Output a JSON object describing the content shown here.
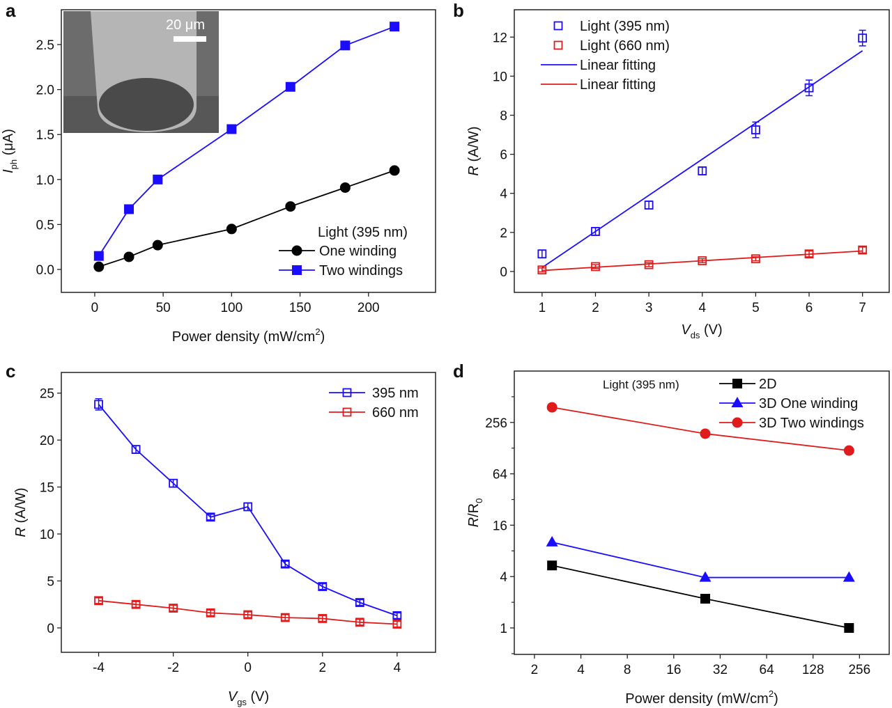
{
  "chart_data": [
    {
      "panel": "a",
      "type": "line",
      "xlabel": {
        "text": "Power density  (mW/cm",
        "sup": "2",
        "tail": ")"
      },
      "ylabel": {
        "var": "I",
        "sub": "ph",
        "unit": " (μA)"
      },
      "xlim": [
        -24.4,
        249
      ],
      "ylim": [
        -0.255,
        2.887
      ],
      "xticks": [
        0,
        50,
        100,
        150,
        200
      ],
      "xtick_labels": [
        "0",
        "50",
        "100",
        "150",
        "200"
      ],
      "yticks": [
        0,
        0.5,
        1.0,
        1.5,
        2.0,
        2.5
      ],
      "ytick_labels": [
        "0.0",
        "0.5",
        "1.0",
        "1.5",
        "2.0",
        "2.5"
      ],
      "legend_title": "Light (395 nm)",
      "legend_placement": "bottom-right",
      "inset": {
        "scale_bar_label": "20 μm"
      },
      "series": [
        {
          "name": "One winding",
          "color": "#000000",
          "marker": "circle",
          "x": [
            3,
            25,
            46,
            100,
            143,
            183,
            219
          ],
          "y": [
            0.03,
            0.14,
            0.27,
            0.45,
            0.7,
            0.91,
            1.1
          ]
        },
        {
          "name": "Two windings",
          "color": "#1a0dff",
          "marker": "square",
          "x": [
            3,
            25,
            46,
            100,
            143,
            183,
            219
          ],
          "y": [
            0.15,
            0.67,
            1.0,
            1.56,
            2.03,
            2.49,
            2.7
          ]
        }
      ]
    },
    {
      "panel": "b",
      "type": "scatter",
      "xlabel": {
        "var": "V",
        "sub": "ds",
        "unit": " (V)"
      },
      "ylabel": {
        "var": "R",
        "sub": "",
        "unit": " (A/W)"
      },
      "xlim": [
        0.48,
        7.5
      ],
      "ylim": [
        -1.07,
        13.4
      ],
      "xticks": [
        1,
        2,
        3,
        4,
        5,
        6,
        7
      ],
      "xtick_labels": [
        "1",
        "2",
        "3",
        "4",
        "5",
        "6",
        "7"
      ],
      "yticks": [
        0,
        2,
        4,
        6,
        8,
        10,
        12
      ],
      "ytick_labels": [
        "0",
        "2",
        "4",
        "6",
        "8",
        "10",
        "12"
      ],
      "legend_placement": "top-left",
      "series": [
        {
          "name": "Light (395 nm)",
          "color": "#1a0dff",
          "marker": "open-square",
          "x": [
            1,
            2,
            3,
            4,
            5,
            6,
            7
          ],
          "y": [
            0.9,
            2.05,
            3.4,
            5.15,
            7.25,
            9.4,
            11.95
          ],
          "err": [
            0.2,
            0.2,
            0.2,
            0.2,
            0.4,
            0.4,
            0.4
          ]
        },
        {
          "name": "Light (660 nm)",
          "color": "#e01b1b",
          "marker": "open-square",
          "x": [
            1,
            2,
            3,
            4,
            5,
            6,
            7
          ],
          "y": [
            0.08,
            0.25,
            0.35,
            0.55,
            0.65,
            0.9,
            1.1
          ],
          "err": [
            0.1,
            0.1,
            0.1,
            0.1,
            0.1,
            0.15,
            0.15
          ]
        }
      ],
      "fits": [
        {
          "name": "Linear fitting",
          "color": "#1a0dff",
          "x": [
            1,
            7
          ],
          "y": [
            0.2,
            11.3
          ]
        },
        {
          "name": "Linear fitting",
          "color": "#e01b1b",
          "x": [
            1,
            7
          ],
          "y": [
            0.05,
            1.05
          ]
        }
      ]
    },
    {
      "panel": "c",
      "type": "line",
      "xlabel": {
        "var": "V",
        "sub": "gs",
        "unit": " (V)"
      },
      "ylabel": {
        "var": "R",
        "sub": "",
        "unit": " (A/W)"
      },
      "xlim": [
        -5.0,
        5.03
      ],
      "ylim": [
        -2.6,
        27.2
      ],
      "xticks": [
        -4,
        -2,
        0,
        2,
        4
      ],
      "xtick_labels": [
        "-4",
        "-2",
        "0",
        "2",
        "4"
      ],
      "yticks": [
        0,
        5,
        10,
        15,
        20,
        25
      ],
      "ytick_labels": [
        "0",
        "5",
        "10",
        "15",
        "20",
        "25"
      ],
      "legend_placement": "top-right",
      "series": [
        {
          "name": "395 nm",
          "color": "#1a0dff",
          "marker": "open-square",
          "x": [
            -4,
            -3,
            -2,
            -1,
            0,
            1,
            2,
            3,
            4
          ],
          "y": [
            23.8,
            19.0,
            15.4,
            11.8,
            12.9,
            6.8,
            4.4,
            2.7,
            1.3
          ],
          "err": [
            0.6,
            0.4,
            0.4,
            0.3,
            0.4,
            0.3,
            0.3,
            0.3,
            0.3
          ]
        },
        {
          "name": "660 nm",
          "color": "#e01b1b",
          "marker": "open-square",
          "x": [
            -4,
            -3,
            -2,
            -1,
            0,
            1,
            2,
            3,
            4
          ],
          "y": [
            2.9,
            2.5,
            2.1,
            1.6,
            1.4,
            1.1,
            1.0,
            0.6,
            0.4
          ],
          "err": [
            0.3,
            0.3,
            0.3,
            0.3,
            0.3,
            0.3,
            0.3,
            0.3,
            0.3
          ]
        }
      ]
    },
    {
      "panel": "d",
      "type": "line",
      "xscale": "log2",
      "yscale": "log2",
      "xlabel": {
        "text": "Power density (mW/cm",
        "sup": "2",
        "tail": ")"
      },
      "ylabel": {
        "var": "R",
        "sub": "0",
        "unit": "",
        "prefix_slash": "/R"
      },
      "xlim": [
        1.48,
        399
      ],
      "ylim": [
        0.49,
        1024
      ],
      "xticks": [
        2,
        4,
        8,
        16,
        32,
        64,
        128,
        256
      ],
      "xtick_labels": [
        "2",
        "4",
        "8",
        "16",
        "32",
        "64",
        "128",
        "256"
      ],
      "yticks": [
        1,
        4,
        16,
        64,
        256
      ],
      "ytick_labels": [
        "1",
        "4",
        "16",
        "64",
        "256"
      ],
      "yminor": [
        0.5,
        2,
        8,
        32,
        128,
        512
      ],
      "legend_title": "Light (395 nm)",
      "legend_placement": "top",
      "series": [
        {
          "name": "2D",
          "color": "#000000",
          "marker": "square",
          "x": [
            2.6,
            25.6,
            219
          ],
          "y": [
            5.4,
            2.2,
            1.0
          ]
        },
        {
          "name": "3D One winding",
          "color": "#1a0dff",
          "marker": "triangle",
          "x": [
            2.6,
            25.6,
            219
          ],
          "y": [
            10.1,
            3.9,
            3.9
          ]
        },
        {
          "name": "3D Two windings",
          "color": "#e01b1b",
          "marker": "circle",
          "x": [
            2.6,
            25.6,
            219
          ],
          "y": [
            385,
            189,
            120
          ]
        }
      ]
    }
  ],
  "panel_labels": [
    "a",
    "b",
    "c",
    "d"
  ]
}
